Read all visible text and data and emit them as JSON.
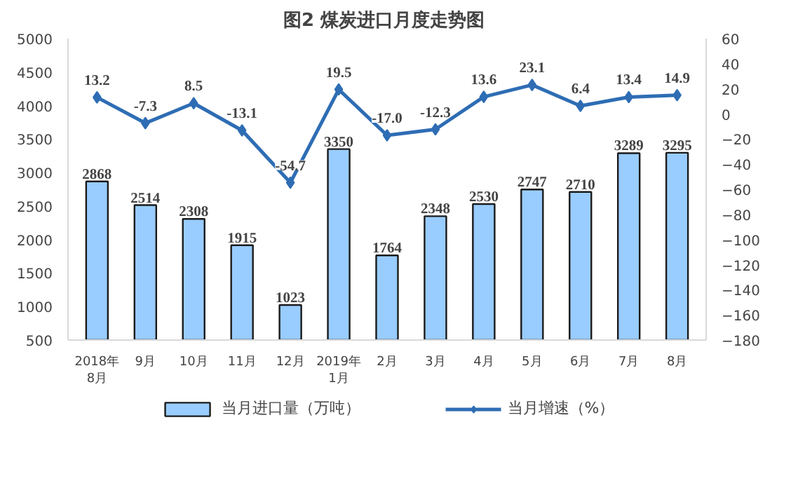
{
  "chart_data": {
    "type": "bar",
    "title": "图2  煤炭进口月度走势图",
    "categories": [
      "2018年\n8月",
      "9月",
      "10月",
      "11月",
      "12月",
      "2019年\n1月",
      "2月",
      "3月",
      "4月",
      "5月",
      "6月",
      "7月",
      "8月"
    ],
    "series": [
      {
        "name": "当月进口量（万吨）",
        "color": "#99ccff",
        "values": [
          2868,
          2514,
          2308,
          1915,
          1023,
          3350,
          1764,
          2348,
          2530,
          2747,
          2710,
          3289,
          3295
        ]
      },
      {
        "name": "当月增速（%）",
        "type": "line",
        "axis": "y2",
        "color": "#2e6db4",
        "values": [
          13.2,
          -7.3,
          8.5,
          -13.1,
          -54.7,
          19.5,
          -17.0,
          -12.3,
          13.6,
          23.1,
          6.4,
          13.4,
          14.9
        ],
        "value_labels": [
          "13.2",
          "-7.3",
          "8.5",
          "-13.1",
          "-54.7",
          "19.5",
          "-17.0",
          "-12.3",
          "13.6",
          "23.1",
          "6.4",
          "13.4",
          "14.9"
        ]
      }
    ],
    "ylim": [
      500,
      5000
    ],
    "yticks": [
      500,
      1000,
      1500,
      2000,
      2500,
      3000,
      3500,
      4000,
      4500,
      5000
    ],
    "y2lim": [
      -180,
      60
    ],
    "y2ticks": [
      -180,
      -160,
      -140,
      -120,
      -100,
      -80,
      -60,
      -40,
      -20,
      0,
      20,
      40,
      60
    ],
    "data_labels": true,
    "grid": false,
    "legend": "bottom",
    "marker": "diamond",
    "line_style": "solid"
  }
}
